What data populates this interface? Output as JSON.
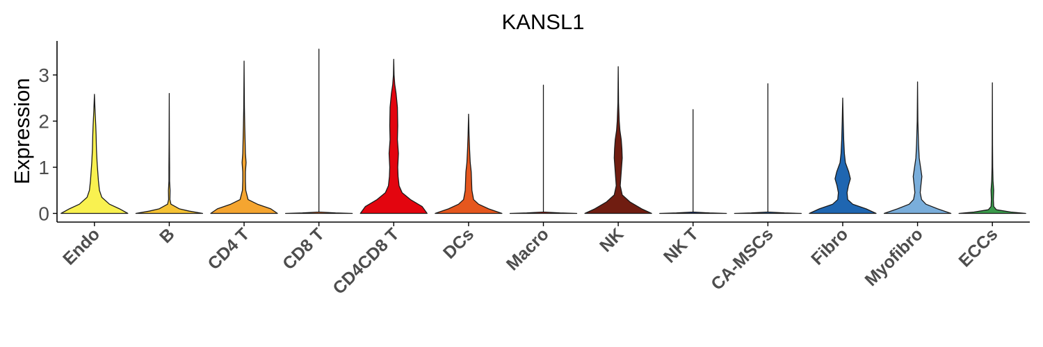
{
  "chart_data": {
    "type": "violin",
    "title": "KANSL1",
    "xlabel": "",
    "ylabel": "Expression",
    "ylim": [
      -0.2,
      3.7
    ],
    "yticks": [
      0,
      1,
      2,
      3
    ],
    "grid": false,
    "legend": "none",
    "categories": [
      "Endo",
      "B",
      "CD4 T",
      "CD8 T",
      "CD4CD8 T",
      "DCs",
      "Macro",
      "NK",
      "NK T",
      "CA-MSCs",
      "Fibro",
      "Myofibro",
      "ECCs"
    ],
    "colors": [
      "#f9f150",
      "#f6c335",
      "#f5a530",
      "#f3722c",
      "#e3050f",
      "#e5571e",
      "#b82216",
      "#701d11",
      "#1b3f8f",
      "#2b6bb0",
      "#1f66b1",
      "#7aaedb",
      "#3a9a4b"
    ],
    "max_values": [
      2.58,
      2.6,
      3.3,
      3.56,
      3.34,
      2.15,
      2.78,
      3.18,
      2.25,
      2.81,
      2.5,
      2.85,
      2.83
    ],
    "density_profiles": [
      [
        [
          0,
          1.0
        ],
        [
          0.1,
          0.75
        ],
        [
          0.2,
          0.45
        ],
        [
          0.35,
          0.22
        ],
        [
          0.5,
          0.15
        ],
        [
          0.7,
          0.12
        ],
        [
          0.9,
          0.1
        ],
        [
          1.1,
          0.08
        ],
        [
          1.4,
          0.06
        ],
        [
          1.7,
          0.05
        ],
        [
          1.9,
          0.04
        ],
        [
          2.2,
          0.02
        ],
        [
          2.58,
          0.0
        ]
      ],
      [
        [
          0,
          1.0
        ],
        [
          0.05,
          0.6
        ],
        [
          0.1,
          0.3
        ],
        [
          0.2,
          0.05
        ],
        [
          0.3,
          0.02
        ],
        [
          0.5,
          0.025
        ],
        [
          0.7,
          0.01
        ],
        [
          1.0,
          0.01
        ],
        [
          1.5,
          0.005
        ],
        [
          2.6,
          0.0
        ]
      ],
      [
        [
          0,
          1.0
        ],
        [
          0.1,
          0.8
        ],
        [
          0.2,
          0.4
        ],
        [
          0.3,
          0.12
        ],
        [
          0.5,
          0.05
        ],
        [
          0.7,
          0.04
        ],
        [
          0.9,
          0.04
        ],
        [
          1.1,
          0.06
        ],
        [
          1.3,
          0.04
        ],
        [
          1.6,
          0.03
        ],
        [
          1.9,
          0.02
        ],
        [
          2.3,
          0.01
        ],
        [
          3.3,
          0.0
        ]
      ],
      [
        [
          0,
          1.0
        ],
        [
          0.01,
          0.5
        ],
        [
          0.03,
          0.0
        ],
        [
          3.56,
          0.0
        ]
      ],
      [
        [
          0,
          1.0
        ],
        [
          0.15,
          0.85
        ],
        [
          0.3,
          0.5
        ],
        [
          0.45,
          0.25
        ],
        [
          0.6,
          0.16
        ],
        [
          0.8,
          0.13
        ],
        [
          1.0,
          0.12
        ],
        [
          1.3,
          0.14
        ],
        [
          1.6,
          0.11
        ],
        [
          1.9,
          0.12
        ],
        [
          2.3,
          0.11
        ],
        [
          2.6,
          0.07
        ],
        [
          2.8,
          0.03
        ],
        [
          3.0,
          0.01
        ],
        [
          3.34,
          0.0
        ]
      ],
      [
        [
          0,
          1.0
        ],
        [
          0.1,
          0.6
        ],
        [
          0.2,
          0.3
        ],
        [
          0.3,
          0.15
        ],
        [
          0.5,
          0.1
        ],
        [
          0.7,
          0.09
        ],
        [
          0.9,
          0.08
        ],
        [
          1.1,
          0.05
        ],
        [
          1.4,
          0.03
        ],
        [
          1.7,
          0.015
        ],
        [
          2.15,
          0.0
        ]
      ],
      [
        [
          0,
          1.0
        ],
        [
          0.01,
          0.5
        ],
        [
          0.03,
          0.0
        ],
        [
          2.78,
          0.0
        ]
      ],
      [
        [
          0,
          1.0
        ],
        [
          0.1,
          0.7
        ],
        [
          0.25,
          0.35
        ],
        [
          0.4,
          0.12
        ],
        [
          0.6,
          0.06
        ],
        [
          0.8,
          0.08
        ],
        [
          1.0,
          0.1
        ],
        [
          1.2,
          0.12
        ],
        [
          1.4,
          0.11
        ],
        [
          1.6,
          0.09
        ],
        [
          1.8,
          0.05
        ],
        [
          2.0,
          0.03
        ],
        [
          2.4,
          0.01
        ],
        [
          3.18,
          0.0
        ]
      ],
      [
        [
          0,
          1.0
        ],
        [
          0.01,
          0.5
        ],
        [
          0.03,
          0.0
        ],
        [
          2.25,
          0.0
        ]
      ],
      [
        [
          0,
          1.0
        ],
        [
          0.01,
          0.5
        ],
        [
          0.03,
          0.0
        ],
        [
          2.81,
          0.0
        ]
      ],
      [
        [
          0,
          1.0
        ],
        [
          0.1,
          0.7
        ],
        [
          0.2,
          0.3
        ],
        [
          0.3,
          0.15
        ],
        [
          0.45,
          0.13
        ],
        [
          0.6,
          0.17
        ],
        [
          0.75,
          0.23
        ],
        [
          0.9,
          0.18
        ],
        [
          1.1,
          0.08
        ],
        [
          1.3,
          0.05
        ],
        [
          1.6,
          0.03
        ],
        [
          2.0,
          0.015
        ],
        [
          2.5,
          0.0
        ]
      ],
      [
        [
          0,
          1.0
        ],
        [
          0.1,
          0.6
        ],
        [
          0.2,
          0.25
        ],
        [
          0.3,
          0.12
        ],
        [
          0.45,
          0.08
        ],
        [
          0.6,
          0.1
        ],
        [
          0.8,
          0.13
        ],
        [
          1.0,
          0.09
        ],
        [
          1.2,
          0.05
        ],
        [
          1.5,
          0.03
        ],
        [
          2.0,
          0.01
        ],
        [
          2.85,
          0.0
        ]
      ],
      [
        [
          0,
          1.0
        ],
        [
          0.03,
          0.55
        ],
        [
          0.08,
          0.12
        ],
        [
          0.15,
          0.04
        ],
        [
          0.3,
          0.03
        ],
        [
          0.5,
          0.04
        ],
        [
          0.7,
          0.02
        ],
        [
          1.0,
          0.01
        ],
        [
          1.5,
          0.005
        ],
        [
          2.83,
          0.0
        ]
      ]
    ]
  }
}
